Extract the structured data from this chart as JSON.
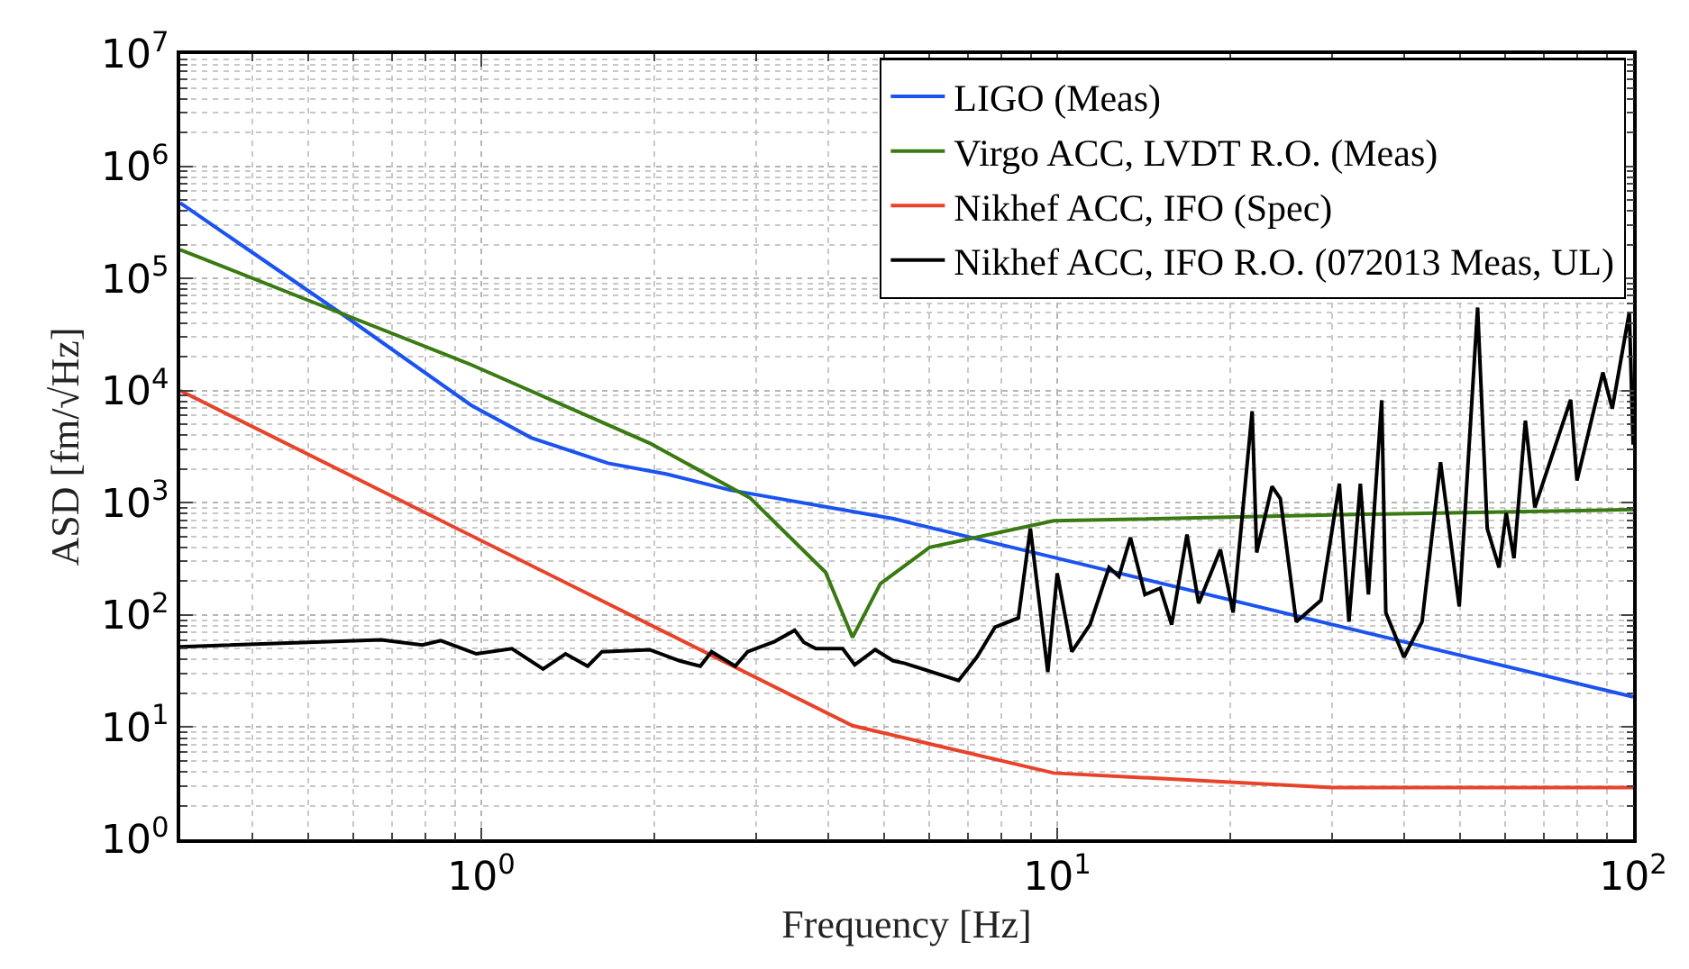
{
  "chart_data": {
    "type": "line",
    "xlabel": "Frequency [Hz]",
    "ylabel": "ASD [fm/√Hz]",
    "log": "xy",
    "grid": true,
    "legend": "top right",
    "line_style": "solid",
    "marker": "none",
    "xlim": [
      0.3,
      100
    ],
    "xticks": [
      {
        "value": 1,
        "label": "10$^{0}$"
      },
      {
        "value": 10,
        "label": "10$^{1}$"
      },
      {
        "value": 100,
        "label": "10$^{2}$"
      }
    ],
    "ylim": [
      1,
      10000000
    ],
    "yticks": [
      {
        "value": 1,
        "label": "10$^{0}$"
      },
      {
        "value": 10,
        "label": "10$^{1}$"
      },
      {
        "value": 100,
        "label": "10$^{2}$"
      },
      {
        "value": 1000,
        "label": "10$^{3}$"
      },
      {
        "value": 10000,
        "label": "10$^{4}$"
      },
      {
        "value": 100000,
        "label": "10$^{5}$"
      },
      {
        "value": 1000000,
        "label": "10$^{6}$"
      },
      {
        "value": 10000000,
        "label": "10$^{7}$"
      }
    ],
    "series": [
      {
        "name": "LIGO (Meas)",
        "color": "#1a53f0",
        "x": [
          0.3,
          0.57,
          0.96,
          1.22,
          1.66,
          2.1,
          2.7,
          5.2,
          10,
          100
        ],
        "values": [
          470000,
          49000,
          7400,
          3800,
          2250,
          1800,
          1300,
          720,
          320,
          18.6
        ]
      },
      {
        "name": "Virgo ACC, LVDT R.O. (Meas)",
        "color": "#3a7a12",
        "x": [
          0.3,
          0.57,
          0.96,
          1.96,
          2.93,
          3.96,
          4.41,
          4.93,
          6.0,
          9.86,
          30,
          100
        ],
        "values": [
          180000,
          49000,
          17000,
          3400,
          1100,
          240,
          63,
          190,
          400,
          690,
          780,
          870
        ]
      },
      {
        "name": "Nikhef ACC, IFO (Spec)",
        "color": "#e8432a",
        "x": [
          0.3,
          4.41,
          9.86,
          30,
          100
        ],
        "values": [
          10000,
          10.3,
          3.9,
          2.9,
          2.9
        ]
      },
      {
        "name": "Nikhef ACC, IFO R.O. (072013 Meas, UL)",
        "color": "#000000",
        "x": [
          0.3,
          0.67,
          0.79,
          0.85,
          0.98,
          1.13,
          1.28,
          1.4,
          1.53,
          1.62,
          1.96,
          2.21,
          2.4,
          2.51,
          2.76,
          2.9,
          3.23,
          3.5,
          3.63,
          3.81,
          4.24,
          4.45,
          4.83,
          5.19,
          5.44,
          6.74,
          7.25,
          7.8,
          8.56,
          8.98,
          9.63,
          10.0,
          10.6,
          11.4,
          12.3,
          12.8,
          13.4,
          14.2,
          15.1,
          15.8,
          16.8,
          17.6,
          19.2,
          20.2,
          21.8,
          22.2,
          23.6,
          24.4,
          26.0,
          28.7,
          30.9,
          32.1,
          33.6,
          34.7,
          36.6,
          37.2,
          40.0,
          43.0,
          46.3,
          49.9,
          53.7,
          55.8,
          58.5,
          60.2,
          62.1,
          65.0,
          67.5,
          77.9,
          79.9,
          88.6,
          92.0,
          98.5,
          100
        ],
        "values": [
          52,
          60,
          54,
          59,
          45,
          50,
          33,
          45,
          35,
          47,
          49,
          39,
          35,
          47,
          35,
          47,
          58,
          73,
          57,
          50,
          50,
          36,
          49,
          39,
          37,
          26,
          42,
          78,
          94,
          590,
          31,
          235,
          47,
          82,
          265,
          220,
          490,
          152,
          173,
          82,
          520,
          127,
          383,
          105,
          6550,
          360,
          1400,
          1090,
          87,
          135,
          1480,
          87,
          1480,
          152,
          8200,
          105,
          42,
          87,
          2300,
          119,
          55000,
          590,
          265,
          810,
          320,
          5400,
          910,
          8300,
          1580,
          14500,
          6900,
          50000,
          3300
        ]
      }
    ]
  }
}
